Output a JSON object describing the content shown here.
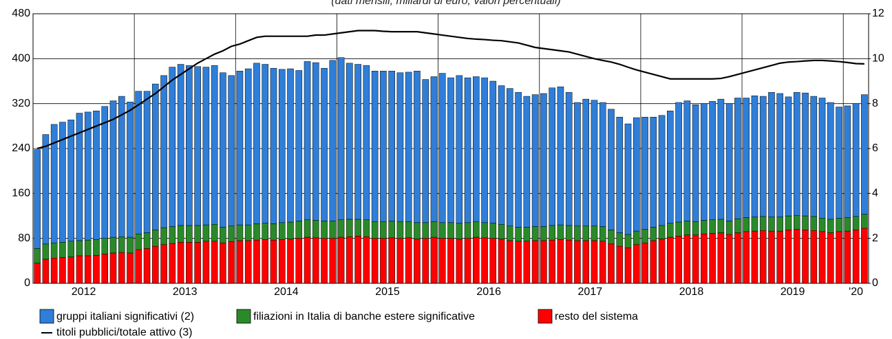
{
  "chart_data": {
    "type": "bar",
    "stacked": true,
    "title": "(dati mensili; miliardi di euro; valori percentuali)",
    "categories": [
      null,
      null,
      null,
      null,
      null,
      null,
      null,
      null,
      null,
      null,
      null,
      null,
      null,
      null,
      null,
      null,
      null,
      null,
      null,
      null,
      null,
      null,
      null,
      null,
      null,
      null,
      null,
      null,
      null,
      null,
      null,
      null,
      null,
      null,
      null,
      null,
      null,
      null,
      null,
      null,
      null,
      null,
      null,
      null,
      null,
      null,
      null,
      null,
      null,
      null,
      null,
      null,
      null,
      null,
      null,
      null,
      null,
      null,
      null,
      null,
      null,
      null,
      null,
      null,
      null,
      null,
      null,
      null,
      null,
      null,
      null,
      null,
      null,
      null,
      null,
      null,
      null,
      null,
      null,
      null,
      null,
      null,
      null,
      null,
      null,
      null,
      null,
      null,
      null,
      null,
      null,
      null,
      null,
      null,
      null,
      null,
      null,
      null,
      null
    ],
    "year_labels": [
      "2012",
      "2013",
      "2014",
      "2015",
      "2016",
      "2017",
      "2018",
      "2019",
      "'20"
    ],
    "series": [
      {
        "name": "resto del sistema",
        "color": "#ff0000",
        "values": [
          36,
          43,
          45,
          46,
          47,
          49,
          49,
          50,
          52,
          54,
          55,
          54,
          60,
          62,
          66,
          69,
          71,
          73,
          73,
          73,
          75,
          75,
          72,
          74,
          76,
          76,
          77,
          78,
          77,
          78,
          79,
          80,
          82,
          81,
          80,
          80,
          82,
          83,
          84,
          83,
          80,
          80,
          81,
          80,
          81,
          79,
          80,
          82,
          80,
          80,
          79,
          80,
          82,
          81,
          80,
          79,
          76,
          75,
          75,
          76,
          76,
          77,
          78,
          77,
          76,
          76,
          76,
          75,
          70,
          66,
          63,
          69,
          72,
          76,
          79,
          82,
          84,
          86,
          86,
          88,
          89,
          90,
          87,
          90,
          92,
          93,
          94,
          93,
          93,
          95,
          96,
          95,
          94,
          92,
          90,
          92,
          93,
          95,
          98
        ]
      },
      {
        "name": "filiazioni in Italia di banche estere significative",
        "color": "#2a8a2a",
        "values": [
          26,
          27,
          27,
          27,
          28,
          27,
          28,
          28,
          28,
          28,
          28,
          28,
          28,
          28,
          29,
          30,
          30,
          30,
          30,
          30,
          29,
          30,
          28,
          28,
          28,
          28,
          29,
          29,
          29,
          30,
          30,
          31,
          31,
          31,
          31,
          31,
          31,
          31,
          30,
          30,
          30,
          30,
          30,
          30,
          29,
          29,
          28,
          28,
          28,
          28,
          28,
          28,
          28,
          27,
          27,
          26,
          26,
          25,
          25,
          25,
          25,
          26,
          26,
          26,
          26,
          26,
          26,
          26,
          25,
          24,
          24,
          24,
          24,
          24,
          24,
          25,
          25,
          25,
          24,
          24,
          24,
          24,
          24,
          25,
          25,
          25,
          25,
          25,
          25,
          25,
          25,
          25,
          25,
          24,
          24,
          24,
          24,
          24,
          25
        ]
      },
      {
        "name": "gruppi italiani significativi (2)",
        "color": "#2f7ed8",
        "values": [
          176,
          195,
          211,
          214,
          216,
          227,
          228,
          229,
          235,
          243,
          250,
          241,
          254,
          252,
          260,
          271,
          284,
          287,
          285,
          283,
          281,
          283,
          275,
          268,
          274,
          278,
          286,
          283,
          277,
          273,
          273,
          268,
          282,
          281,
          272,
          286,
          289,
          278,
          276,
          275,
          268,
          268,
          267,
          265,
          266,
          270,
          255,
          258,
          266,
          258,
          263,
          258,
          258,
          258,
          253,
          247,
          245,
          240,
          233,
          235,
          237,
          245,
          246,
          237,
          220,
          226,
          224,
          221,
          215,
          206,
          197,
          202,
          200,
          196,
          196,
          200,
          213,
          214,
          208,
          208,
          211,
          214,
          209,
          215,
          213,
          216,
          214,
          222,
          220,
          212,
          219,
          219,
          214,
          214,
          208,
          198,
          199,
          201,
          213
        ]
      },
      {
        "name": "titoli pubblici/totale attivo (3)",
        "type": "line",
        "axis": "y2",
        "color": "#000000",
        "values": [
          6.0,
          6.1,
          6.25,
          6.4,
          6.55,
          6.7,
          6.85,
          7.0,
          7.15,
          7.3,
          7.5,
          7.7,
          7.95,
          8.2,
          8.45,
          8.75,
          9.05,
          9.3,
          9.55,
          9.8,
          10.0,
          10.2,
          10.35,
          10.55,
          10.65,
          10.8,
          10.95,
          11.0,
          11.0,
          11.0,
          11.0,
          11.0,
          11.0,
          11.05,
          11.05,
          11.1,
          11.15,
          11.2,
          11.25,
          11.25,
          11.25,
          11.22,
          11.2,
          11.2,
          11.2,
          11.2,
          11.15,
          11.1,
          11.05,
          11.0,
          10.95,
          10.9,
          10.87,
          10.85,
          10.82,
          10.8,
          10.75,
          10.7,
          10.6,
          10.5,
          10.45,
          10.4,
          10.35,
          10.3,
          10.2,
          10.1,
          10.0,
          9.92,
          9.85,
          9.75,
          9.62,
          9.5,
          9.4,
          9.3,
          9.2,
          9.1,
          9.1,
          9.1,
          9.1,
          9.1,
          9.1,
          9.12,
          9.2,
          9.3,
          9.4,
          9.5,
          9.6,
          9.7,
          9.8,
          9.85,
          9.87,
          9.9,
          9.92,
          9.92,
          9.9,
          9.87,
          9.83,
          9.78,
          9.77
        ]
      }
    ],
    "ylim": [
      0,
      480
    ],
    "yticks": [
      0,
      80,
      160,
      240,
      320,
      400,
      480
    ],
    "y2lim": [
      0,
      12
    ],
    "y2ticks": [
      0,
      2,
      4,
      6,
      8,
      10,
      12
    ],
    "grid": true
  }
}
